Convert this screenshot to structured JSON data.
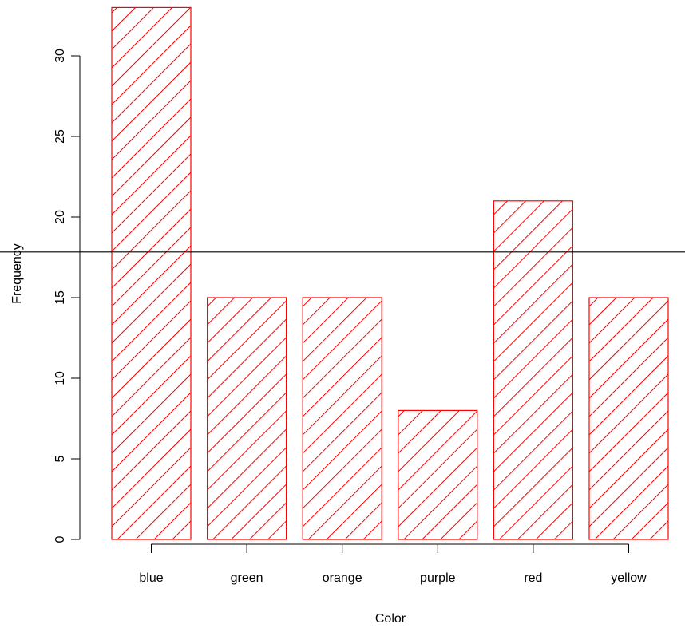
{
  "chart_data": {
    "type": "bar",
    "categories": [
      "blue",
      "green",
      "orange",
      "purple",
      "red",
      "yellow"
    ],
    "values": [
      33,
      15,
      15,
      8,
      21,
      15
    ],
    "title": "",
    "xlabel": "Color",
    "ylabel": "Frequency",
    "ylim": [
      0,
      33
    ],
    "yticks": [
      0,
      5,
      10,
      15,
      20,
      25,
      30
    ],
    "reference_line": {
      "y": 17.83
    },
    "bar_fill": "hatched",
    "bar_color": "#ff0000",
    "line_color": "#000000",
    "grid": false,
    "legend": "none"
  }
}
